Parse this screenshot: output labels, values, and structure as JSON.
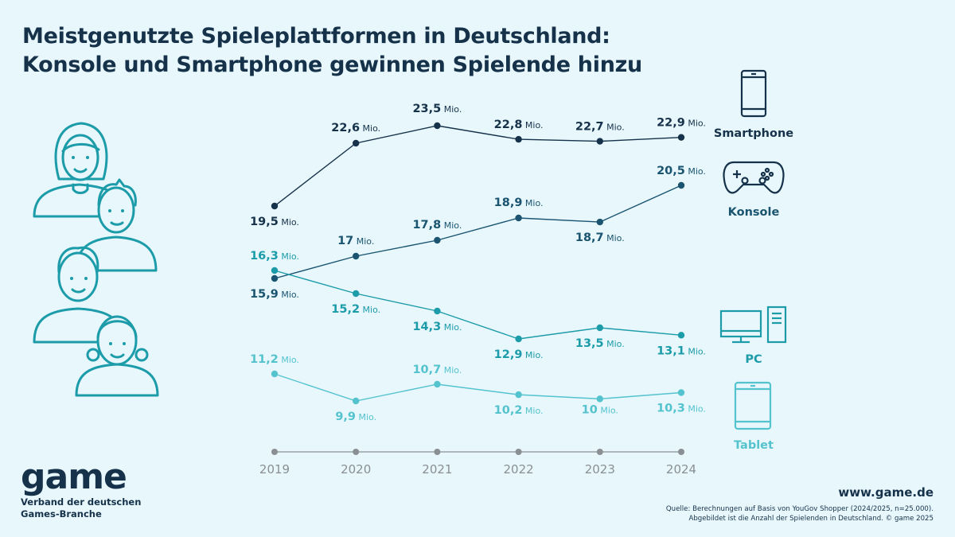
{
  "title": {
    "line1": "Meistgenutzte Spieleplattformen in Deutschland:",
    "line2": "Konsole und Smartphone gewinnen Spielende hinzu"
  },
  "logo": {
    "wordmark": "game",
    "sub_line1": "Verband der deutschen",
    "sub_line2": "Games-Branche"
  },
  "url": "www.game.de",
  "source": {
    "line1": "Quelle: Berechnungen auf Basis von YouGov Shopper (2024/2025, n=25.000).",
    "line2": "Abgebildet ist die Anzahl der Spielenden in Deutschland. © game 2025"
  },
  "colors": {
    "background": "#e7f7fc",
    "smartphone": "#16324a",
    "konsole": "#1a5470",
    "pc": "#1c9ba9",
    "tablet": "#54c3ce",
    "axis": "#8a8f94"
  },
  "unit_label": "Mio.",
  "chart_data": {
    "type": "line",
    "title": "Meistgenutzte Spieleplattformen in Deutschland: Konsole und Smartphone gewinnen Spielende hinzu",
    "categories": [
      "2019",
      "2020",
      "2021",
      "2022",
      "2023",
      "2024"
    ],
    "series": [
      {
        "name": "Smartphone",
        "values": [
          19.5,
          22.6,
          23.5,
          22.8,
          22.7,
          22.9
        ],
        "labels": [
          "19,5",
          "22,6",
          "23,5",
          "22,8",
          "22,7",
          "22,9"
        ],
        "color": "#16324a",
        "icon": "smartphone-icon"
      },
      {
        "name": "Konsole",
        "values": [
          15.9,
          17,
          17.8,
          18.9,
          18.7,
          20.5
        ],
        "labels": [
          "15,9",
          "17",
          "17,8",
          "18,9",
          "18,7",
          "20,5"
        ],
        "color": "#1a5470",
        "icon": "gamepad-icon"
      },
      {
        "name": "PC",
        "values": [
          16.3,
          15.2,
          14.3,
          12.9,
          13.5,
          13.1
        ],
        "labels": [
          "16,3",
          "15,2",
          "14,3",
          "12,9",
          "13,5",
          "13,1"
        ],
        "color": "#1c9ba9",
        "icon": "desktop-pc-icon"
      },
      {
        "name": "Tablet",
        "values": [
          11.2,
          9.9,
          10.7,
          10.2,
          10,
          10.3
        ],
        "labels": [
          "11,2",
          "9,9",
          "10,7",
          "10,2",
          "10",
          "10,3"
        ],
        "color": "#54c3ce",
        "icon": "tablet-icon"
      }
    ],
    "unit": "Mio.",
    "legend": "right",
    "grid": false
  }
}
